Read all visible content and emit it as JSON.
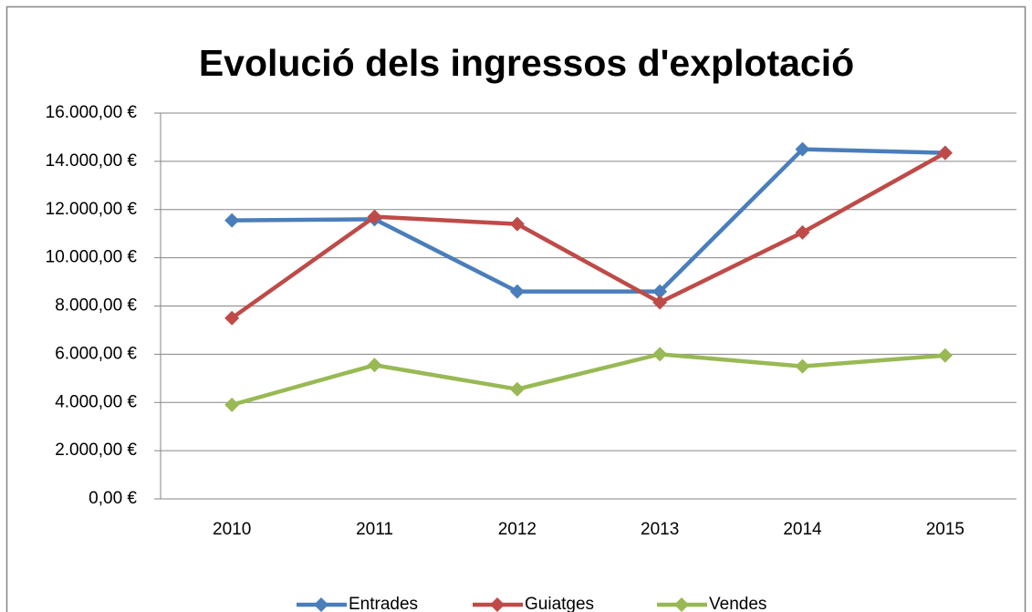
{
  "chart_data": {
    "type": "line",
    "title": "Evolució dels ingressos d'explotació",
    "categories": [
      "2010",
      "2011",
      "2012",
      "2013",
      "2014",
      "2015"
    ],
    "series": [
      {
        "name": "Entrades",
        "color": "#4a7ebb",
        "values": [
          11550,
          11600,
          8600,
          8600,
          14500,
          14350
        ]
      },
      {
        "name": "Guiatges",
        "color": "#be4b48",
        "values": [
          7500,
          11700,
          11400,
          8150,
          11050,
          14350
        ]
      },
      {
        "name": "Vendes",
        "color": "#98b954",
        "values": [
          3900,
          5550,
          4550,
          6000,
          5500,
          5950
        ]
      }
    ],
    "ylim": [
      0,
      16000
    ],
    "yticks": [
      {
        "value": 0,
        "label": "0,00 €"
      },
      {
        "value": 2000,
        "label": "2.000,00 €"
      },
      {
        "value": 4000,
        "label": "4.000,00 €"
      },
      {
        "value": 6000,
        "label": "6.000,00 €"
      },
      {
        "value": 8000,
        "label": "8.000,00 €"
      },
      {
        "value": 10000,
        "label": "10.000,00 €"
      },
      {
        "value": 12000,
        "label": "12.000,00 €"
      },
      {
        "value": 14000,
        "label": "14.000,00 €"
      },
      {
        "value": 16000,
        "label": "16.000,00 €"
      }
    ],
    "grid": true,
    "legend": "bottom"
  }
}
